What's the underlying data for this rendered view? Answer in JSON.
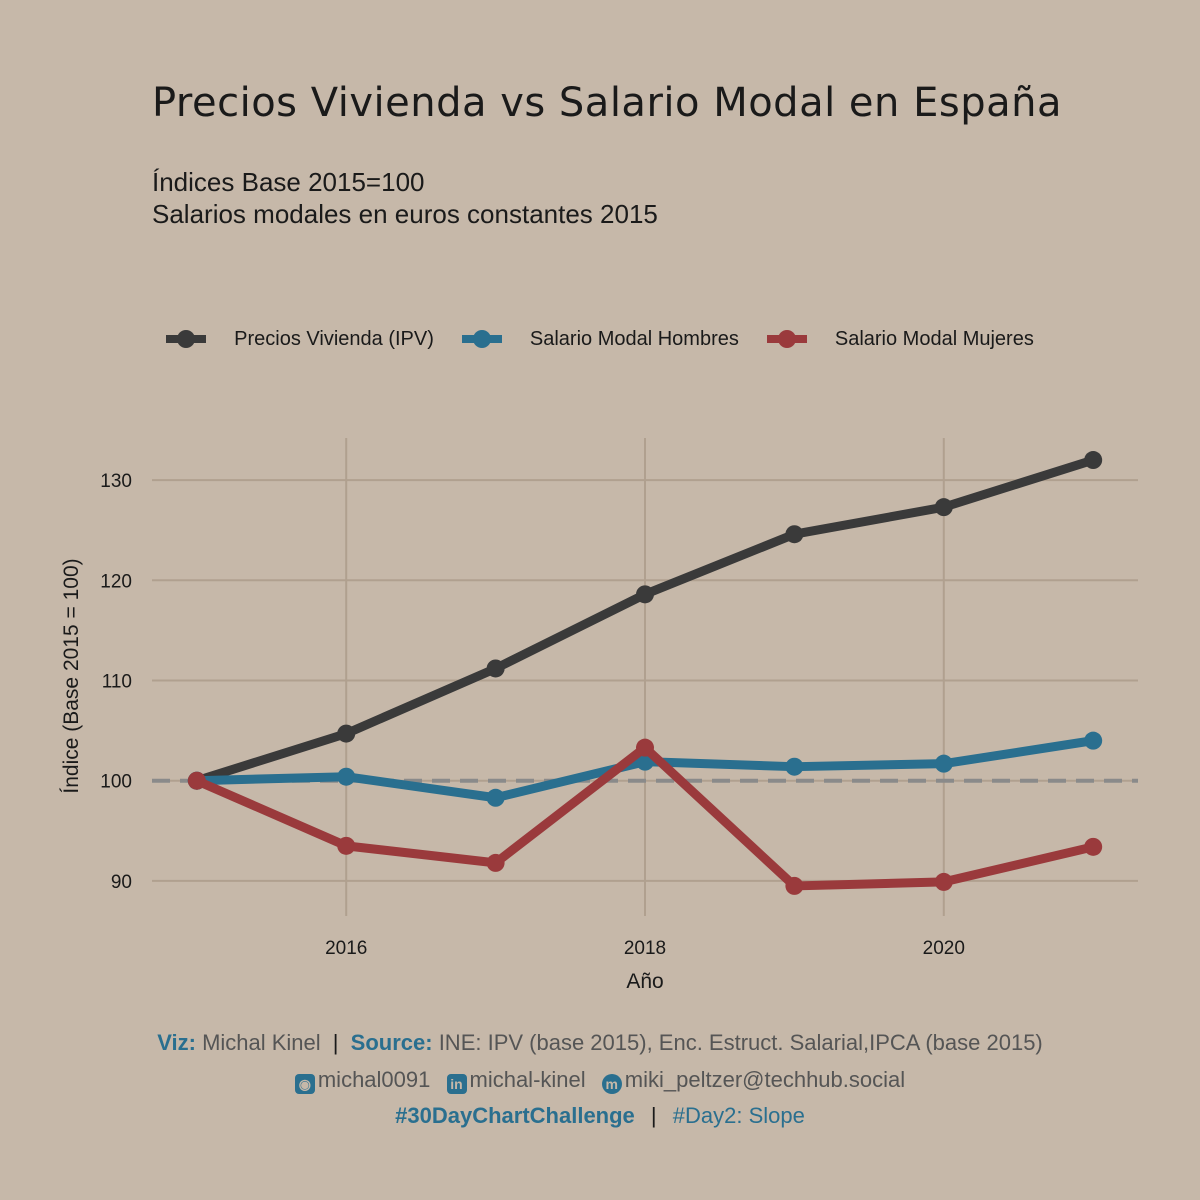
{
  "title": "Precios Vivienda vs Salario Modal en España",
  "subtitle_line1": "Índices Base 2015=100",
  "subtitle_line2": "Salarios modales en euros constantes 2015",
  "colors": {
    "background": "#c6b8a9",
    "grid": "#b0a08f",
    "ipv": "#3a3a3a",
    "hombres": "#2a6f8f",
    "mujeres": "#9a3a3c",
    "reference": "#8a8a8a"
  },
  "chart_data": {
    "type": "line",
    "xlabel": "Año",
    "ylabel": "Índice (Base 2015 = 100)",
    "x": [
      2015,
      2016,
      2017,
      2018,
      2019,
      2020,
      2021
    ],
    "xlim": [
      2014.7,
      2021.3
    ],
    "ylim": [
      86.5,
      134.2
    ],
    "x_ticks": [
      2016,
      2018,
      2020
    ],
    "y_ticks": [
      90,
      100,
      110,
      120,
      130
    ],
    "reference_line": 100,
    "grid": true,
    "legend_position": "top",
    "series": [
      {
        "name": "Precios Vivienda (IPV)",
        "color_key": "ipv",
        "values": [
          100,
          104.7,
          111.2,
          118.6,
          124.6,
          127.3,
          132.0
        ]
      },
      {
        "name": "Salario Modal Hombres",
        "color_key": "hombres",
        "values": [
          100,
          100.4,
          98.3,
          101.9,
          101.4,
          101.7,
          104.0
        ]
      },
      {
        "name": "Salario Modal Mujeres",
        "color_key": "mujeres",
        "values": [
          100,
          93.5,
          91.8,
          103.3,
          89.5,
          89.9,
          93.4
        ]
      }
    ]
  },
  "footer": {
    "viz_label": "Viz:",
    "viz_value": "Michal Kinel",
    "sep": "|",
    "source_label": "Source:",
    "source_value": "INE: IPV (base 2015), Enc. Estruct. Salarial,IPCA (base 2015)",
    "github": "michal0091",
    "linkedin": "michal-kinel",
    "mastodon": "miki_peltzer@techhub.social",
    "hashtag": "#30DayChartChallenge",
    "day": "#Day2: Slope"
  }
}
